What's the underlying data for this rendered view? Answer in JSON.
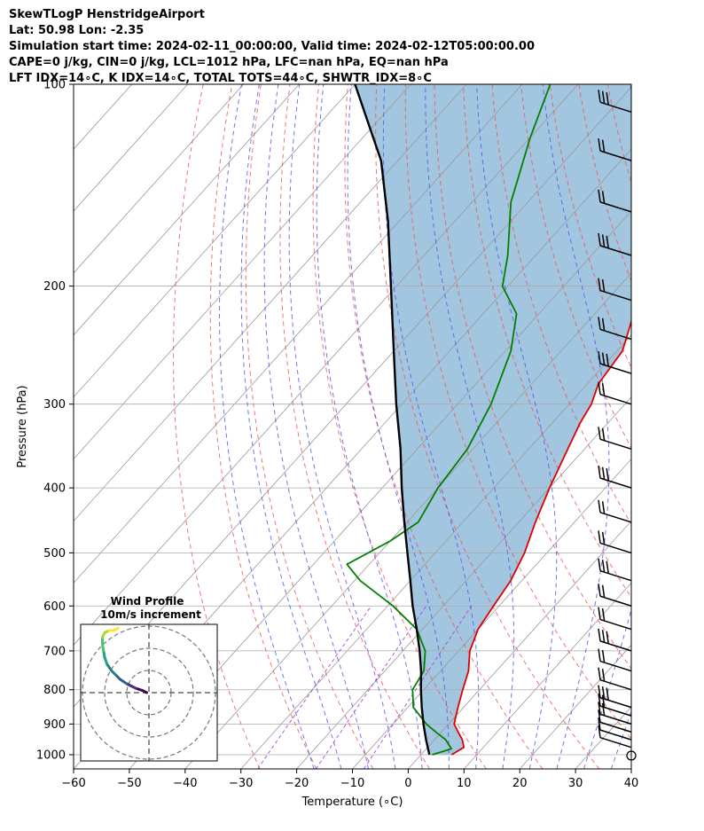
{
  "header": {
    "line1": "SkewTLogP HenstridgeAirport",
    "line2": "Lat: 50.98   Lon: -2.35",
    "line3": "Simulation start time: 2024-02-11_00:00:00, Valid time: 2024-02-12T05:00:00.00",
    "line4": "CAPE=0 j/kg, CIN=0 j/kg, LCL=1012 hPa, LFC=nan hPa, EQ=nan hPa",
    "line5": "LFT IDX=14∘C, K IDX=14∘C, TOTAL TOTS=44∘C, SHWTR_IDX=8∘C"
  },
  "colors": {
    "temperature": "#e00000",
    "dewpoint": "#008000",
    "parcel": "#000000",
    "fill": "#a3c6e0",
    "dry_adiabat": "#f05050",
    "moist_adiabat": "#5050f0",
    "mixing_ratio": "#a040d0",
    "isotherm": "#999999"
  },
  "chart_data": {
    "type": "line",
    "subtype": "skew-T log-P",
    "xlabel": "Temperature (∘C)",
    "ylabel": "Pressure (hPa)",
    "xlim": [
      -60,
      40
    ],
    "ylim": [
      1050,
      100
    ],
    "y_scale": "log",
    "x_ticks": [
      "−60",
      "−50",
      "−40",
      "−30",
      "−20",
      "−10",
      "0",
      "10",
      "20",
      "30",
      "40"
    ],
    "x_tick_values": [
      -60,
      -50,
      -40,
      -30,
      -20,
      -10,
      0,
      10,
      20,
      30,
      40
    ],
    "y_ticks": [
      "100",
      "200",
      "300",
      "400",
      "500",
      "600",
      "700",
      "800",
      "900",
      "1000"
    ],
    "y_tick_values": [
      100,
      200,
      300,
      400,
      500,
      600,
      700,
      800,
      900,
      1000
    ],
    "grid": true,
    "series": [
      {
        "key": "temperature",
        "points": [
          [
            1000,
            5.5
          ],
          [
            975,
            6.5
          ],
          [
            950,
            5
          ],
          [
            925,
            3
          ],
          [
            900,
            1
          ],
          [
            850,
            -1
          ],
          [
            800,
            -3
          ],
          [
            750,
            -5
          ],
          [
            700,
            -8
          ],
          [
            650,
            -10
          ],
          [
            600,
            -11
          ],
          [
            550,
            -12
          ],
          [
            500,
            -14
          ],
          [
            450,
            -17
          ],
          [
            400,
            -20
          ],
          [
            350,
            -23
          ],
          [
            320,
            -25
          ],
          [
            300,
            -26
          ],
          [
            280,
            -28
          ],
          [
            250,
            -29
          ],
          [
            220,
            -33
          ],
          [
            200,
            -36
          ],
          [
            180,
            -39
          ],
          [
            160,
            -45
          ],
          [
            140,
            -50
          ],
          [
            120,
            -56
          ],
          [
            100,
            -64
          ]
        ]
      },
      {
        "key": "dewpoint",
        "points": [
          [
            1000,
            2
          ],
          [
            980,
            4.5
          ],
          [
            950,
            2
          ],
          [
            925,
            -1
          ],
          [
            900,
            -4
          ],
          [
            850,
            -9
          ],
          [
            800,
            -12
          ],
          [
            750,
            -13
          ],
          [
            700,
            -16
          ],
          [
            650,
            -21
          ],
          [
            600,
            -29
          ],
          [
            550,
            -39
          ],
          [
            520,
            -44
          ],
          [
            480,
            -40
          ],
          [
            450,
            -38
          ],
          [
            400,
            -40
          ],
          [
            350,
            -41
          ],
          [
            300,
            -44
          ],
          [
            250,
            -49
          ],
          [
            220,
            -54
          ],
          [
            200,
            -61
          ],
          [
            180,
            -65
          ],
          [
            150,
            -73
          ],
          [
            120,
            -80
          ],
          [
            100,
            -85
          ]
        ]
      },
      {
        "key": "parcel",
        "points": [
          [
            1000,
            1.5
          ],
          [
            950,
            -1.5
          ],
          [
            900,
            -4.5
          ],
          [
            850,
            -7.5
          ],
          [
            800,
            -10.5
          ],
          [
            750,
            -13.5
          ],
          [
            700,
            -17
          ],
          [
            650,
            -21
          ],
          [
            600,
            -25.5
          ],
          [
            550,
            -30
          ],
          [
            500,
            -35
          ],
          [
            450,
            -40.5
          ],
          [
            400,
            -46.5
          ],
          [
            350,
            -53
          ],
          [
            300,
            -61
          ],
          [
            250,
            -70
          ],
          [
            200,
            -81
          ],
          [
            160,
            -92
          ],
          [
            130,
            -103
          ],
          [
            100,
            -120
          ]
        ]
      }
    ],
    "wind_barb_pressures": [
      1000,
      975,
      950,
      925,
      900,
      875,
      850,
      800,
      750,
      700,
      650,
      600,
      550,
      500,
      450,
      400,
      350,
      300,
      270,
      240,
      210,
      180,
      155,
      130,
      110
    ],
    "hodograph": {
      "title": "Wind Profile",
      "subtitle": "10m/s increment",
      "ring_increments_ms": [
        10,
        20,
        30
      ],
      "trace_uv": [
        [
          0,
          -1
        ],
        [
          1,
          -3
        ],
        [
          2,
          -6
        ],
        [
          3,
          -8
        ],
        [
          4,
          -10
        ],
        [
          6,
          -13
        ],
        [
          8,
          -15
        ],
        [
          10,
          -17
        ],
        [
          13,
          -19
        ],
        [
          16,
          -20
        ],
        [
          19,
          -20.5
        ],
        [
          22,
          -21
        ],
        [
          25,
          -21
        ],
        [
          27,
          -20
        ],
        [
          28,
          -18
        ],
        [
          28,
          -16
        ],
        [
          29,
          -14
        ]
      ]
    }
  }
}
